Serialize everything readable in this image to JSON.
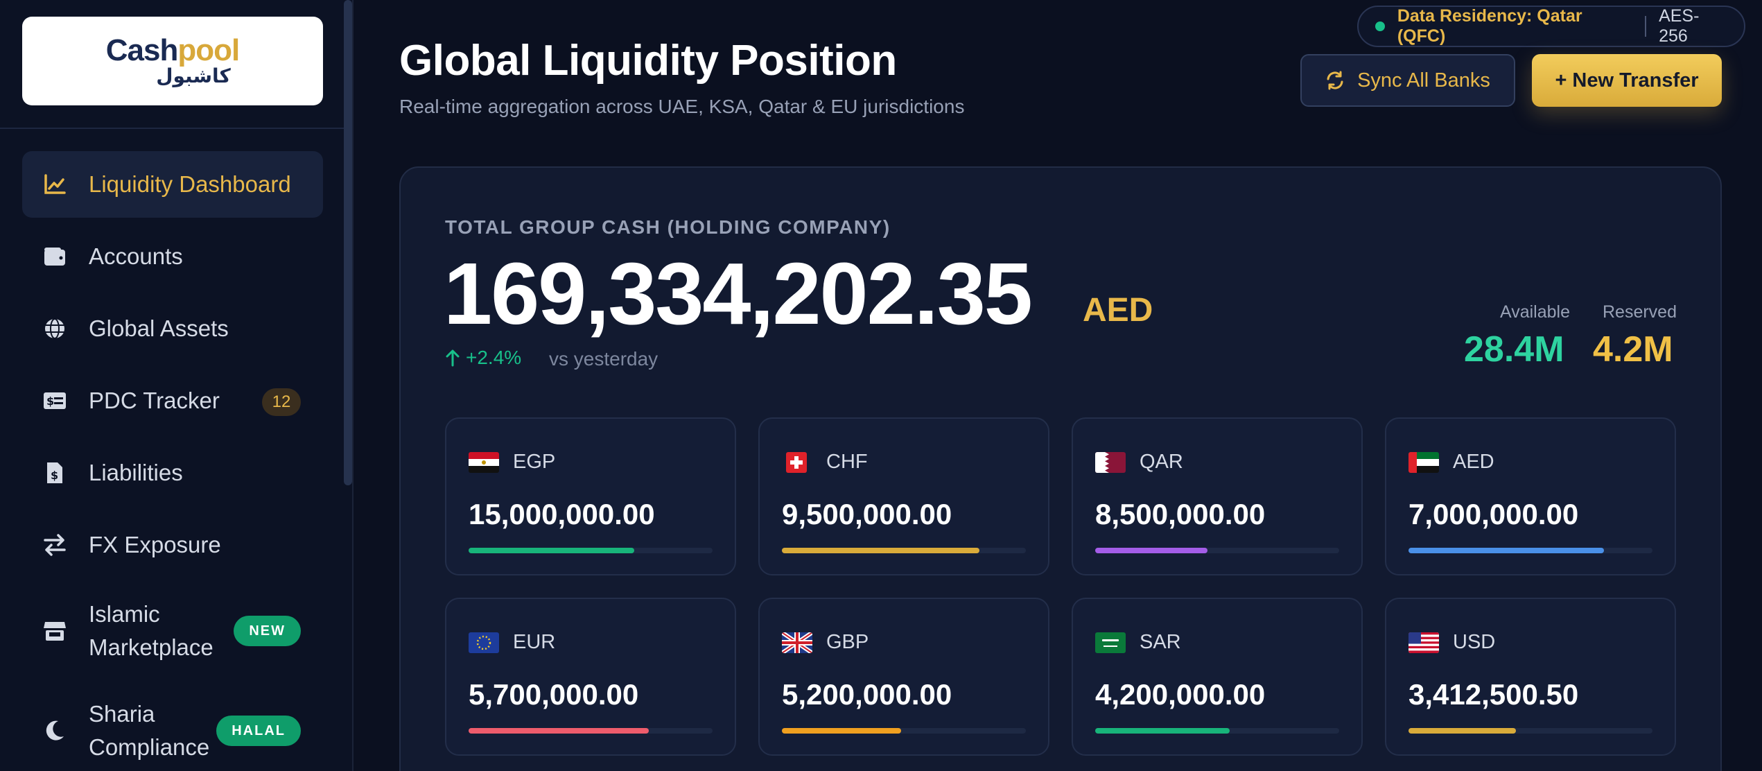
{
  "sidebar": {
    "logo": {
      "part1": "Cash",
      "part2": "pool",
      "arabic": "كاشبول"
    },
    "items": [
      {
        "label": "Liquidity Dashboard",
        "icon": "chart-line-icon",
        "active": true
      },
      {
        "label": "Accounts",
        "icon": "wallet-icon"
      },
      {
        "label": "Global Assets",
        "icon": "globe-icon"
      },
      {
        "label": "PDC Tracker",
        "icon": "money-check-icon",
        "badge": "12"
      },
      {
        "label": "Liabilities",
        "icon": "file-invoice-dollar-icon"
      },
      {
        "label": "FX Exposure",
        "icon": "exchange-arrows-icon"
      },
      {
        "label": "Islamic Marketplace",
        "icon": "store-icon",
        "badge": "NEW"
      },
      {
        "label": "Sharia Compliance",
        "icon": "moon-icon",
        "badge": "HALAL"
      }
    ]
  },
  "header": {
    "residency": "Data Residency: Qatar (QFC)",
    "encryption": "AES-256",
    "title": "Global Liquidity Position",
    "subtitle": "Real-time aggregation across UAE, KSA, Qatar & EU jurisdictions",
    "sync_label": "Sync All Banks",
    "new_transfer_label": "+ New Transfer"
  },
  "summary": {
    "label": "TOTAL GROUP CASH (HOLDING COMPANY)",
    "total": "169,334,202.35",
    "currency": "AED",
    "change": "+2.4%",
    "vs": "vs yesterday",
    "available_label": "Available",
    "available_value": "28.4M",
    "reserved_label": "Reserved",
    "reserved_value": "4.2M"
  },
  "currencies": [
    {
      "code": "EGP",
      "amount": "15,000,000.00",
      "share": 0.68,
      "color": "#18b47a"
    },
    {
      "code": "CHF",
      "amount": "9,500,000.00",
      "share": 0.81,
      "color": "#d9ab3a"
    },
    {
      "code": "QAR",
      "amount": "8,500,000.00",
      "share": 0.46,
      "color": "#a45de8"
    },
    {
      "code": "AED",
      "amount": "7,000,000.00",
      "share": 0.8,
      "color": "#4a90e8"
    },
    {
      "code": "EUR",
      "amount": "5,700,000.00",
      "share": 0.74,
      "color": "#ee5c6c"
    },
    {
      "code": "GBP",
      "amount": "5,200,000.00",
      "share": 0.49,
      "color": "#f0a020"
    },
    {
      "code": "SAR",
      "amount": "4,200,000.00",
      "share": 0.55,
      "color": "#18b47a"
    },
    {
      "code": "USD",
      "amount": "3,412,500.50",
      "share": 0.44,
      "color": "#d9ab3a"
    }
  ],
  "colors": {
    "accent": "#e8b84a",
    "positive": "#18c08a",
    "background": "#0b1020"
  }
}
